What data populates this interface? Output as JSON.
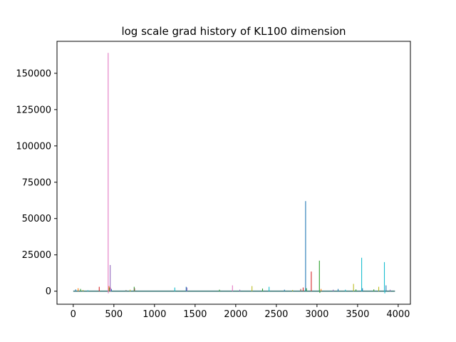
{
  "chart_data": {
    "type": "line",
    "title": "log scale grad history of KL100 dimension",
    "xlabel": "",
    "ylabel": "",
    "xlim": [
      -200,
      4150
    ],
    "ylim": [
      -9000,
      172000
    ],
    "x_ticks": [
      0,
      500,
      1000,
      1500,
      2000,
      2500,
      3000,
      3500,
      4000
    ],
    "y_ticks": [
      0,
      25000,
      50000,
      75000,
      100000,
      125000,
      150000
    ],
    "x_tick_labels": [
      "0",
      "500",
      "1000",
      "1500",
      "2000",
      "2500",
      "3000",
      "3500",
      "4000"
    ],
    "y_tick_labels": [
      "0",
      "25000",
      "50000",
      "75000",
      "100000",
      "125000",
      "150000"
    ],
    "grid": false,
    "baseline": {
      "x_start": 0,
      "x_end": 3960,
      "y": 0,
      "color": "#2f6f6f"
    },
    "spikes": [
      {
        "x": 30,
        "y": 1200,
        "color": "#1f77b4"
      },
      {
        "x": 60,
        "y": 2000,
        "color": "#ff7f0e"
      },
      {
        "x": 90,
        "y": 1500,
        "color": "#2ca02c"
      },
      {
        "x": 120,
        "y": 800,
        "color": "#bcbd22"
      },
      {
        "x": 180,
        "y": 600,
        "color": "#17becf"
      },
      {
        "x": 320,
        "y": 3000,
        "color": "#d62728"
      },
      {
        "x": 430,
        "y": 164000,
        "color": "#e377c2"
      },
      {
        "x": 432,
        "y": -1500,
        "color": "#e377c2"
      },
      {
        "x": 440,
        "y": 3500,
        "color": "#ff7f0e"
      },
      {
        "x": 448,
        "y": 2500,
        "color": "#2ca02c"
      },
      {
        "x": 455,
        "y": 18000,
        "color": "#9467bd"
      },
      {
        "x": 460,
        "y": 2500,
        "color": "#e377c2"
      },
      {
        "x": 470,
        "y": 1500,
        "color": "#1f77b4"
      },
      {
        "x": 650,
        "y": 800,
        "color": "#7f7f7f"
      },
      {
        "x": 700,
        "y": 1000,
        "color": "#bcbd22"
      },
      {
        "x": 750,
        "y": 3000,
        "color": "#2ca02c"
      },
      {
        "x": 755,
        "y": 2000,
        "color": "#8c564b"
      },
      {
        "x": 1250,
        "y": 2500,
        "color": "#17becf"
      },
      {
        "x": 1390,
        "y": 3000,
        "color": "#1f77b4"
      },
      {
        "x": 1400,
        "y": 2500,
        "color": "#9467bd"
      },
      {
        "x": 1800,
        "y": 1000,
        "color": "#2ca02c"
      },
      {
        "x": 1960,
        "y": 4000,
        "color": "#e377c2"
      },
      {
        "x": 2050,
        "y": 1000,
        "color": "#9467bd"
      },
      {
        "x": 2200,
        "y": 3500,
        "color": "#bcbd22"
      },
      {
        "x": 2330,
        "y": 1800,
        "color": "#2ca02c"
      },
      {
        "x": 2410,
        "y": 3000,
        "color": "#17becf"
      },
      {
        "x": 2600,
        "y": 1000,
        "color": "#1f77b4"
      },
      {
        "x": 2700,
        "y": 800,
        "color": "#bcbd22"
      },
      {
        "x": 2800,
        "y": 1500,
        "color": "#8c564b"
      },
      {
        "x": 2830,
        "y": 2500,
        "color": "#d62728"
      },
      {
        "x": 2860,
        "y": 62000,
        "color": "#1f77b4"
      },
      {
        "x": 2870,
        "y": 2000,
        "color": "#2ca02c"
      },
      {
        "x": 2930,
        "y": 13500,
        "color": "#d62728"
      },
      {
        "x": 3030,
        "y": 21000,
        "color": "#2ca02c"
      },
      {
        "x": 3035,
        "y": -1200,
        "color": "#2ca02c"
      },
      {
        "x": 3050,
        "y": 1500,
        "color": "#ff7f0e"
      },
      {
        "x": 3200,
        "y": 1000,
        "color": "#9467bd"
      },
      {
        "x": 3260,
        "y": 1500,
        "color": "#1f77b4"
      },
      {
        "x": 3350,
        "y": 1000,
        "color": "#17becf"
      },
      {
        "x": 3450,
        "y": 5000,
        "color": "#bcbd22"
      },
      {
        "x": 3480,
        "y": 1200,
        "color": "#2ca02c"
      },
      {
        "x": 3550,
        "y": 23000,
        "color": "#17becf"
      },
      {
        "x": 3560,
        "y": 2000,
        "color": "#1f77b4"
      },
      {
        "x": 3700,
        "y": 1200,
        "color": "#2ca02c"
      },
      {
        "x": 3760,
        "y": 3000,
        "color": "#bcbd22"
      },
      {
        "x": 3830,
        "y": 20000,
        "color": "#17becf"
      },
      {
        "x": 3835,
        "y": -1500,
        "color": "#17becf"
      },
      {
        "x": 3850,
        "y": 4000,
        "color": "#1f77b4"
      },
      {
        "x": 3900,
        "y": 1000,
        "color": "#9467bd"
      }
    ]
  }
}
